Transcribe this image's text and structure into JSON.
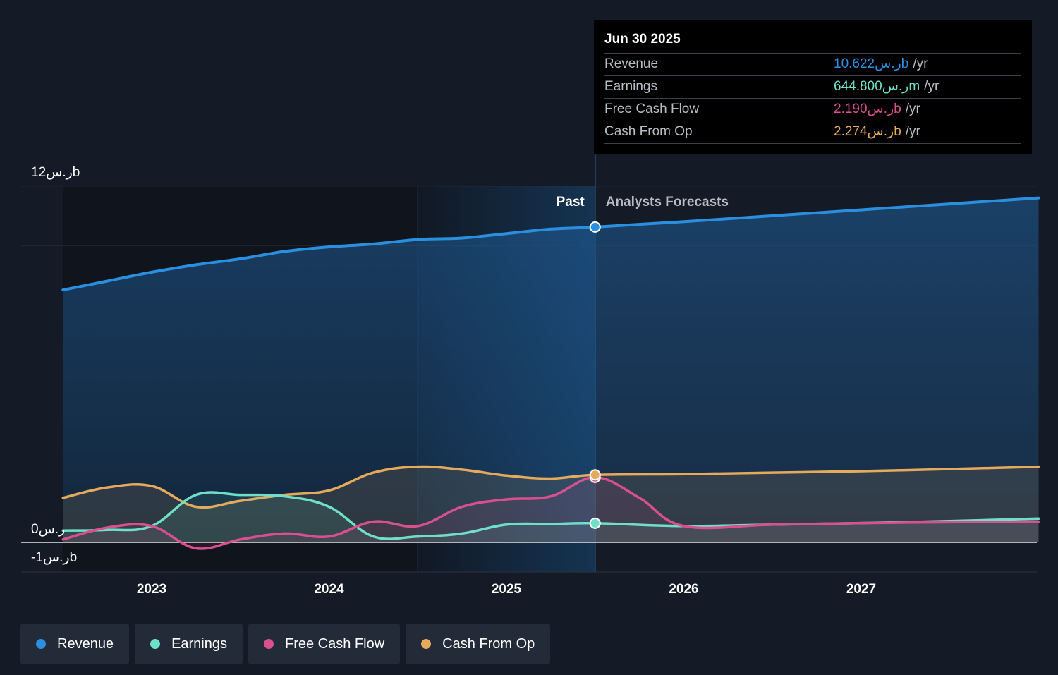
{
  "colors": {
    "revenue": "#2b8fe0",
    "earnings": "#6fe0c8",
    "free_cash_flow": "#d9508f",
    "cash_from_op": "#e6aa5c",
    "background": "#151b26"
  },
  "chart_data": {
    "type": "line",
    "title": "",
    "ylim": [
      -1,
      12
    ],
    "y_tick_labels": [
      {
        "value": 12,
        "label": "12ر.سb"
      },
      {
        "value": 0,
        "label": "0ر.س"
      },
      {
        "value": -1,
        "label": "-1ر.سb"
      }
    ],
    "x_tick_labels": [
      "2023",
      "2024",
      "2025",
      "2026",
      "2027"
    ],
    "x_ticks": [
      2023,
      2024,
      2025,
      2026,
      2027
    ],
    "xlim": [
      2022.27,
      2028.0
    ],
    "divider_x": 2025.5,
    "highlight_start_x": 2024.5,
    "past_label": "Past",
    "forecast_label": "Analysts Forecasts",
    "grid": true,
    "legend_position": "bottom-left",
    "series": [
      {
        "name": "Revenue",
        "key": "revenue",
        "x": [
          2022.5,
          2022.75,
          2023.0,
          2023.25,
          2023.5,
          2023.75,
          2024.0,
          2024.25,
          2024.5,
          2024.75,
          2025.0,
          2025.25,
          2025.5,
          2026.0,
          2026.5,
          2027.0,
          2027.5,
          2028.0
        ],
        "y": [
          8.5,
          8.8,
          9.1,
          9.35,
          9.55,
          9.8,
          9.95,
          10.05,
          10.2,
          10.25,
          10.4,
          10.55,
          10.62,
          10.8,
          11.0,
          11.2,
          11.4,
          11.6
        ]
      },
      {
        "name": "Earnings",
        "key": "earnings",
        "x": [
          2022.5,
          2022.75,
          2023.0,
          2023.25,
          2023.5,
          2023.75,
          2024.0,
          2024.25,
          2024.5,
          2024.75,
          2025.0,
          2025.25,
          2025.5,
          2026.0,
          2026.5,
          2027.0,
          2027.5,
          2028.0
        ],
        "y": [
          0.4,
          0.42,
          0.55,
          1.6,
          1.6,
          1.55,
          1.2,
          0.2,
          0.2,
          0.3,
          0.6,
          0.62,
          0.645,
          0.55,
          0.6,
          0.65,
          0.72,
          0.8
        ]
      },
      {
        "name": "Free Cash Flow",
        "key": "free_cash_flow",
        "x": [
          2022.5,
          2022.75,
          2023.0,
          2023.25,
          2023.5,
          2023.75,
          2024.0,
          2024.25,
          2024.5,
          2024.75,
          2025.0,
          2025.25,
          2025.5,
          2025.75,
          2026.0,
          2026.5,
          2027.0,
          2027.5,
          2028.0
        ],
        "y": [
          0.1,
          0.5,
          0.55,
          -0.2,
          0.1,
          0.3,
          0.2,
          0.7,
          0.55,
          1.2,
          1.45,
          1.55,
          2.19,
          1.5,
          0.55,
          0.6,
          0.65,
          0.68,
          0.7
        ]
      },
      {
        "name": "Cash From Op",
        "key": "cash_from_op",
        "x": [
          2022.5,
          2022.75,
          2023.0,
          2023.25,
          2023.5,
          2023.75,
          2024.0,
          2024.25,
          2024.5,
          2024.75,
          2025.0,
          2025.25,
          2025.5,
          2026.0,
          2026.5,
          2027.0,
          2027.5,
          2028.0
        ],
        "y": [
          1.5,
          1.85,
          1.9,
          1.2,
          1.4,
          1.6,
          1.75,
          2.35,
          2.55,
          2.45,
          2.25,
          2.15,
          2.274,
          2.3,
          2.35,
          2.4,
          2.47,
          2.55
        ]
      }
    ]
  },
  "tooltip": {
    "date": "Jun 30 2025",
    "rows": [
      {
        "label": "Revenue",
        "value": "10.622ر.سb",
        "unit": "/yr",
        "color": "#2b8fe0"
      },
      {
        "label": "Earnings",
        "value": "644.800ر.سm",
        "unit": "/yr",
        "color": "#6fe0c8"
      },
      {
        "label": "Free Cash Flow",
        "value": "2.190ر.سb",
        "unit": "/yr",
        "color": "#d9508f"
      },
      {
        "label": "Cash From Op",
        "value": "2.274ر.سb",
        "unit": "/yr",
        "color": "#e6aa5c"
      }
    ]
  },
  "legend": {
    "items": [
      {
        "label": "Revenue",
        "color": "#2b8fe0"
      },
      {
        "label": "Earnings",
        "color": "#6fe0c8"
      },
      {
        "label": "Free Cash Flow",
        "color": "#d9508f"
      },
      {
        "label": "Cash From Op",
        "color": "#e6aa5c"
      }
    ]
  }
}
